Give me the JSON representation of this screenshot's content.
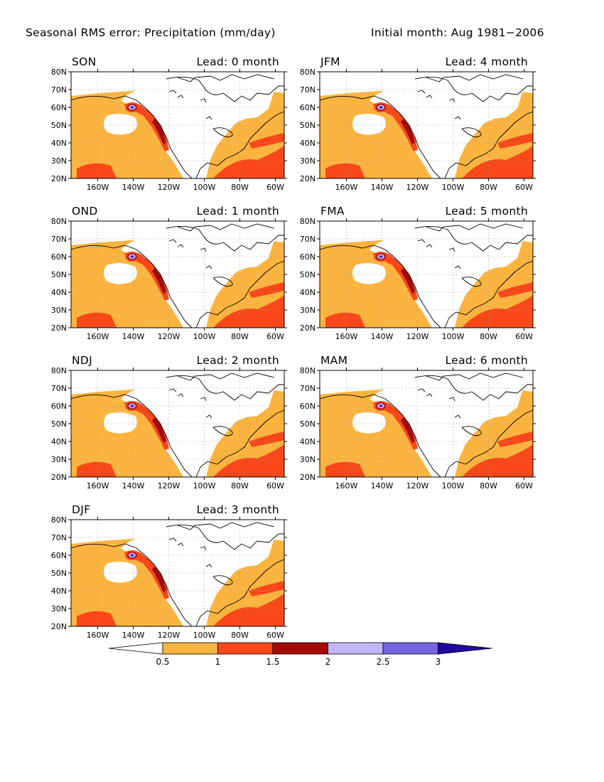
{
  "header": {
    "title": "Seasonal RMS error: Precipitation (mm/day)",
    "initial_month": "Initial month: Aug 1981−2006"
  },
  "axes": {
    "lat_labels": [
      "80N",
      "70N",
      "60N",
      "50N",
      "40N",
      "30N",
      "20N"
    ],
    "lon_labels": [
      "160W",
      "140W",
      "120W",
      "100W",
      "80W",
      "60W"
    ],
    "lat_values": [
      80,
      70,
      60,
      50,
      40,
      30,
      20
    ],
    "lon_values": [
      -160,
      -140,
      -120,
      -100,
      -80,
      -60
    ],
    "lon_range": [
      -175,
      -55
    ],
    "lat_range": [
      20,
      80
    ],
    "grid": "dotted"
  },
  "panels": [
    {
      "season": "SON",
      "lead": "Lead: 0 month",
      "lead_months": 0
    },
    {
      "season": "JFM",
      "lead": "Lead: 4 month",
      "lead_months": 4
    },
    {
      "season": "OND",
      "lead": "Lead: 1 month",
      "lead_months": 1
    },
    {
      "season": "FMA",
      "lead": "Lead: 5 month",
      "lead_months": 5
    },
    {
      "season": "NDJ",
      "lead": "Lead: 2 month",
      "lead_months": 2
    },
    {
      "season": "MAM",
      "lead": "Lead: 6 month",
      "lead_months": 6
    },
    {
      "season": "DJF",
      "lead": "Lead: 3 month",
      "lead_months": 3
    }
  ],
  "colorbar": {
    "labels": [
      "0.5",
      "1",
      "1.5",
      "2",
      "2.5",
      "3"
    ],
    "thresholds": [
      0.5,
      1,
      1.5,
      2,
      2.5,
      3
    ],
    "colors": [
      "#ffffff",
      "#fbb440",
      "#f8481a",
      "#a20a0a",
      "#c3b5fb",
      "#7466e0",
      "#1e0aa0"
    ]
  }
}
